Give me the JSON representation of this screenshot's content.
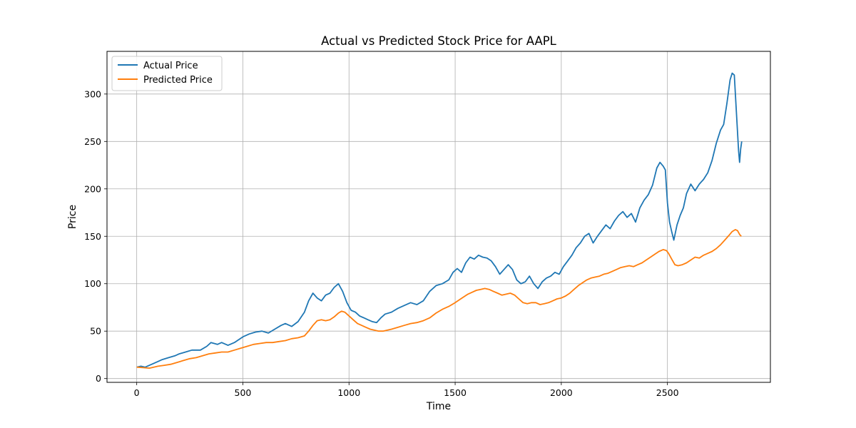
{
  "chart_data": {
    "type": "line",
    "title": "Actual vs Predicted Stock Price for AAPL",
    "xlabel": "Time",
    "ylabel": "Price",
    "xlim": [
      -140,
      2985
    ],
    "ylim": [
      -4,
      345
    ],
    "xticks": [
      0,
      500,
      1000,
      1500,
      2000,
      2500
    ],
    "yticks": [
      0,
      50,
      100,
      150,
      200,
      250,
      300
    ],
    "grid": true,
    "legend_position": "top-left",
    "series": [
      {
        "name": "Actual Price",
        "color": "#1f77b4",
        "points": [
          [
            0,
            12
          ],
          [
            20,
            13
          ],
          [
            40,
            12
          ],
          [
            60,
            14
          ],
          [
            80,
            16
          ],
          [
            100,
            18
          ],
          [
            120,
            20
          ],
          [
            150,
            22
          ],
          [
            180,
            24
          ],
          [
            200,
            26
          ],
          [
            230,
            28
          ],
          [
            260,
            30
          ],
          [
            300,
            30
          ],
          [
            330,
            34
          ],
          [
            350,
            38
          ],
          [
            380,
            36
          ],
          [
            400,
            38
          ],
          [
            430,
            35
          ],
          [
            460,
            38
          ],
          [
            500,
            44
          ],
          [
            530,
            47
          ],
          [
            560,
            49
          ],
          [
            590,
            50
          ],
          [
            620,
            48
          ],
          [
            650,
            52
          ],
          [
            680,
            56
          ],
          [
            700,
            58
          ],
          [
            730,
            55
          ],
          [
            760,
            60
          ],
          [
            790,
            70
          ],
          [
            810,
            82
          ],
          [
            830,
            90
          ],
          [
            850,
            85
          ],
          [
            870,
            82
          ],
          [
            890,
            88
          ],
          [
            910,
            90
          ],
          [
            930,
            96
          ],
          [
            950,
            100
          ],
          [
            970,
            92
          ],
          [
            990,
            80
          ],
          [
            1010,
            72
          ],
          [
            1030,
            70
          ],
          [
            1050,
            66
          ],
          [
            1070,
            64
          ],
          [
            1090,
            62
          ],
          [
            1110,
            60
          ],
          [
            1130,
            59
          ],
          [
            1150,
            64
          ],
          [
            1170,
            68
          ],
          [
            1200,
            70
          ],
          [
            1230,
            74
          ],
          [
            1260,
            77
          ],
          [
            1290,
            80
          ],
          [
            1320,
            78
          ],
          [
            1350,
            82
          ],
          [
            1380,
            92
          ],
          [
            1410,
            98
          ],
          [
            1440,
            100
          ],
          [
            1470,
            104
          ],
          [
            1490,
            112
          ],
          [
            1510,
            116
          ],
          [
            1530,
            112
          ],
          [
            1550,
            122
          ],
          [
            1570,
            128
          ],
          [
            1590,
            126
          ],
          [
            1610,
            130
          ],
          [
            1630,
            128
          ],
          [
            1650,
            127
          ],
          [
            1670,
            124
          ],
          [
            1690,
            118
          ],
          [
            1710,
            110
          ],
          [
            1730,
            115
          ],
          [
            1750,
            120
          ],
          [
            1770,
            115
          ],
          [
            1790,
            104
          ],
          [
            1810,
            100
          ],
          [
            1830,
            102
          ],
          [
            1850,
            108
          ],
          [
            1870,
            100
          ],
          [
            1890,
            95
          ],
          [
            1910,
            102
          ],
          [
            1930,
            106
          ],
          [
            1950,
            108
          ],
          [
            1970,
            112
          ],
          [
            1990,
            110
          ],
          [
            2010,
            118
          ],
          [
            2030,
            124
          ],
          [
            2050,
            130
          ],
          [
            2070,
            138
          ],
          [
            2090,
            143
          ],
          [
            2110,
            150
          ],
          [
            2130,
            153
          ],
          [
            2150,
            143
          ],
          [
            2170,
            150
          ],
          [
            2190,
            156
          ],
          [
            2210,
            162
          ],
          [
            2230,
            158
          ],
          [
            2250,
            166
          ],
          [
            2270,
            172
          ],
          [
            2290,
            176
          ],
          [
            2310,
            170
          ],
          [
            2330,
            174
          ],
          [
            2350,
            165
          ],
          [
            2370,
            180
          ],
          [
            2390,
            188
          ],
          [
            2410,
            194
          ],
          [
            2430,
            204
          ],
          [
            2450,
            222
          ],
          [
            2465,
            228
          ],
          [
            2480,
            224
          ],
          [
            2490,
            220
          ],
          [
            2500,
            185
          ],
          [
            2510,
            165
          ],
          [
            2520,
            155
          ],
          [
            2530,
            146
          ],
          [
            2545,
            162
          ],
          [
            2560,
            172
          ],
          [
            2575,
            180
          ],
          [
            2590,
            195
          ],
          [
            2610,
            205
          ],
          [
            2630,
            198
          ],
          [
            2650,
            205
          ],
          [
            2670,
            210
          ],
          [
            2690,
            217
          ],
          [
            2710,
            230
          ],
          [
            2730,
            248
          ],
          [
            2750,
            262
          ],
          [
            2765,
            268
          ],
          [
            2780,
            290
          ],
          [
            2795,
            315
          ],
          [
            2805,
            322
          ],
          [
            2815,
            320
          ],
          [
            2820,
            300
          ],
          [
            2825,
            280
          ],
          [
            2830,
            260
          ],
          [
            2835,
            240
          ],
          [
            2840,
            228
          ],
          [
            2845,
            242
          ],
          [
            2850,
            250
          ]
        ]
      },
      {
        "name": "Predicted Price",
        "color": "#ff7f0e",
        "points": [
          [
            0,
            12
          ],
          [
            30,
            11.5
          ],
          [
            60,
            11
          ],
          [
            80,
            12
          ],
          [
            100,
            13
          ],
          [
            130,
            14
          ],
          [
            160,
            15
          ],
          [
            190,
            17
          ],
          [
            220,
            19
          ],
          [
            250,
            21
          ],
          [
            280,
            22
          ],
          [
            310,
            24
          ],
          [
            340,
            26
          ],
          [
            370,
            27
          ],
          [
            400,
            28
          ],
          [
            430,
            28
          ],
          [
            460,
            30
          ],
          [
            490,
            32
          ],
          [
            520,
            34
          ],
          [
            550,
            36
          ],
          [
            580,
            37
          ],
          [
            610,
            38
          ],
          [
            640,
            38
          ],
          [
            670,
            39
          ],
          [
            700,
            40
          ],
          [
            730,
            42
          ],
          [
            760,
            43
          ],
          [
            790,
            45
          ],
          [
            810,
            50
          ],
          [
            830,
            56
          ],
          [
            850,
            61
          ],
          [
            870,
            62
          ],
          [
            890,
            61
          ],
          [
            910,
            62
          ],
          [
            930,
            65
          ],
          [
            950,
            69
          ],
          [
            965,
            71
          ],
          [
            980,
            70
          ],
          [
            1000,
            66
          ],
          [
            1020,
            62
          ],
          [
            1040,
            58
          ],
          [
            1060,
            56
          ],
          [
            1080,
            54
          ],
          [
            1100,
            52
          ],
          [
            1120,
            51
          ],
          [
            1140,
            50
          ],
          [
            1160,
            50
          ],
          [
            1180,
            51
          ],
          [
            1200,
            52
          ],
          [
            1230,
            54
          ],
          [
            1260,
            56
          ],
          [
            1290,
            58
          ],
          [
            1320,
            59
          ],
          [
            1350,
            61
          ],
          [
            1380,
            64
          ],
          [
            1410,
            69
          ],
          [
            1440,
            73
          ],
          [
            1470,
            76
          ],
          [
            1500,
            80
          ],
          [
            1520,
            83
          ],
          [
            1540,
            86
          ],
          [
            1560,
            89
          ],
          [
            1580,
            91
          ],
          [
            1600,
            93
          ],
          [
            1620,
            94
          ],
          [
            1640,
            95
          ],
          [
            1660,
            94
          ],
          [
            1680,
            92
          ],
          [
            1700,
            90
          ],
          [
            1720,
            88
          ],
          [
            1740,
            89
          ],
          [
            1760,
            90
          ],
          [
            1780,
            88
          ],
          [
            1800,
            84
          ],
          [
            1820,
            80
          ],
          [
            1840,
            79
          ],
          [
            1860,
            80
          ],
          [
            1880,
            80
          ],
          [
            1900,
            78
          ],
          [
            1920,
            79
          ],
          [
            1940,
            80
          ],
          [
            1960,
            82
          ],
          [
            1980,
            84
          ],
          [
            2000,
            85
          ],
          [
            2020,
            87
          ],
          [
            2040,
            90
          ],
          [
            2060,
            94
          ],
          [
            2080,
            98
          ],
          [
            2100,
            101
          ],
          [
            2120,
            104
          ],
          [
            2140,
            106
          ],
          [
            2160,
            107
          ],
          [
            2180,
            108
          ],
          [
            2200,
            110
          ],
          [
            2220,
            111
          ],
          [
            2240,
            113
          ],
          [
            2260,
            115
          ],
          [
            2280,
            117
          ],
          [
            2300,
            118
          ],
          [
            2320,
            119
          ],
          [
            2340,
            118
          ],
          [
            2360,
            120
          ],
          [
            2380,
            122
          ],
          [
            2400,
            125
          ],
          [
            2420,
            128
          ],
          [
            2440,
            131
          ],
          [
            2460,
            134
          ],
          [
            2480,
            136
          ],
          [
            2495,
            135
          ],
          [
            2505,
            132
          ],
          [
            2520,
            126
          ],
          [
            2535,
            120
          ],
          [
            2550,
            119
          ],
          [
            2570,
            120
          ],
          [
            2590,
            122
          ],
          [
            2610,
            125
          ],
          [
            2630,
            128
          ],
          [
            2650,
            127
          ],
          [
            2670,
            130
          ],
          [
            2690,
            132
          ],
          [
            2710,
            134
          ],
          [
            2730,
            137
          ],
          [
            2750,
            141
          ],
          [
            2770,
            146
          ],
          [
            2790,
            151
          ],
          [
            2805,
            155
          ],
          [
            2820,
            157
          ],
          [
            2830,
            156
          ],
          [
            2840,
            152
          ],
          [
            2848,
            150
          ]
        ]
      }
    ]
  }
}
